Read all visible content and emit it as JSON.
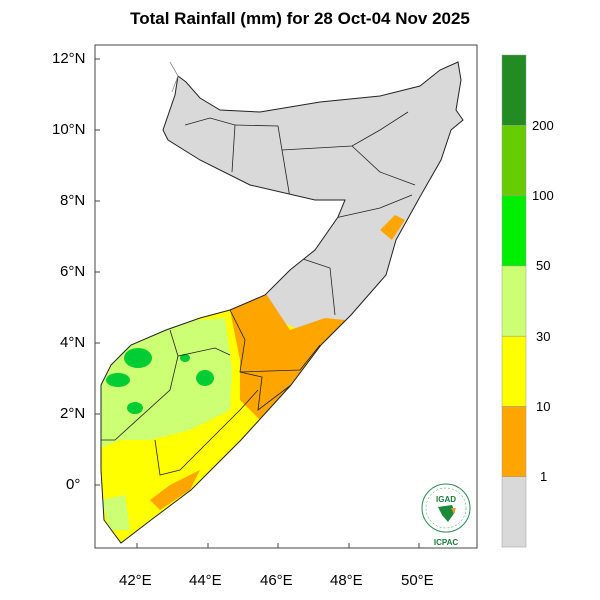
{
  "title": "Total Rainfall (mm) for 28 Oct-04 Nov 2025",
  "map": {
    "lat_labels": [
      "12°N",
      "10°N",
      "8°N",
      "6°N",
      "4°N",
      "2°N",
      "0°"
    ],
    "lon_labels": [
      "42°E",
      "44°E",
      "46°E",
      "48°E",
      "50°E"
    ],
    "land_color": "#d9d9d9"
  },
  "colorbar": {
    "levels": [
      "1",
      "10",
      "30",
      "50",
      "100",
      "200"
    ],
    "colors": [
      "#d9d9d9",
      "#ffa500",
      "#ffff00",
      "#ccff73",
      "#00ee00",
      "#66cc00",
      "#228b22"
    ]
  },
  "logo": {
    "top_text": "IGAD",
    "bottom_text": "ICPAC"
  }
}
